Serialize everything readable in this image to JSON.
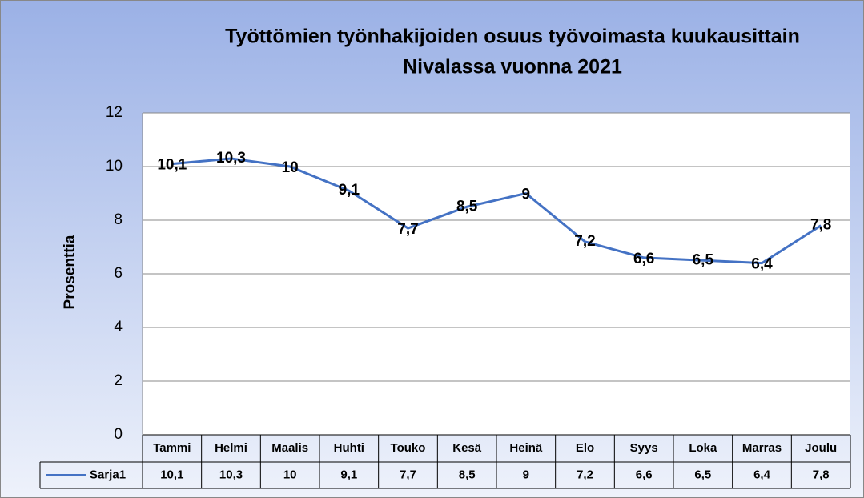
{
  "chart_data": {
    "type": "line",
    "title": "Työttömien työnhakijoiden osuus työvoimasta kuukausittain",
    "subtitle": "Nivalassa vuonna 2021",
    "y_label": "Prosenttia",
    "categories": [
      "Tammi",
      "Helmi",
      "Maalis",
      "Huhti",
      "Touko",
      "Kesä",
      "Heinä",
      "Elo",
      "Syys",
      "Loka",
      "Marras",
      "Joulu"
    ],
    "series": [
      {
        "name": "Sarja1",
        "color": "#4472c4",
        "values": [
          10.1,
          10.3,
          10,
          9.1,
          7.7,
          8.5,
          9,
          7.2,
          6.6,
          6.5,
          6.4,
          7.8
        ],
        "value_labels": [
          "10,1",
          "10,3",
          "10",
          "9,1",
          "7,7",
          "8,5",
          "9",
          "7,2",
          "6,6",
          "6,5",
          "6,4",
          "7,8"
        ]
      }
    ],
    "ylim": [
      0,
      12
    ],
    "yticks": [
      0,
      2,
      4,
      6,
      8,
      10,
      12
    ],
    "grid": true
  }
}
